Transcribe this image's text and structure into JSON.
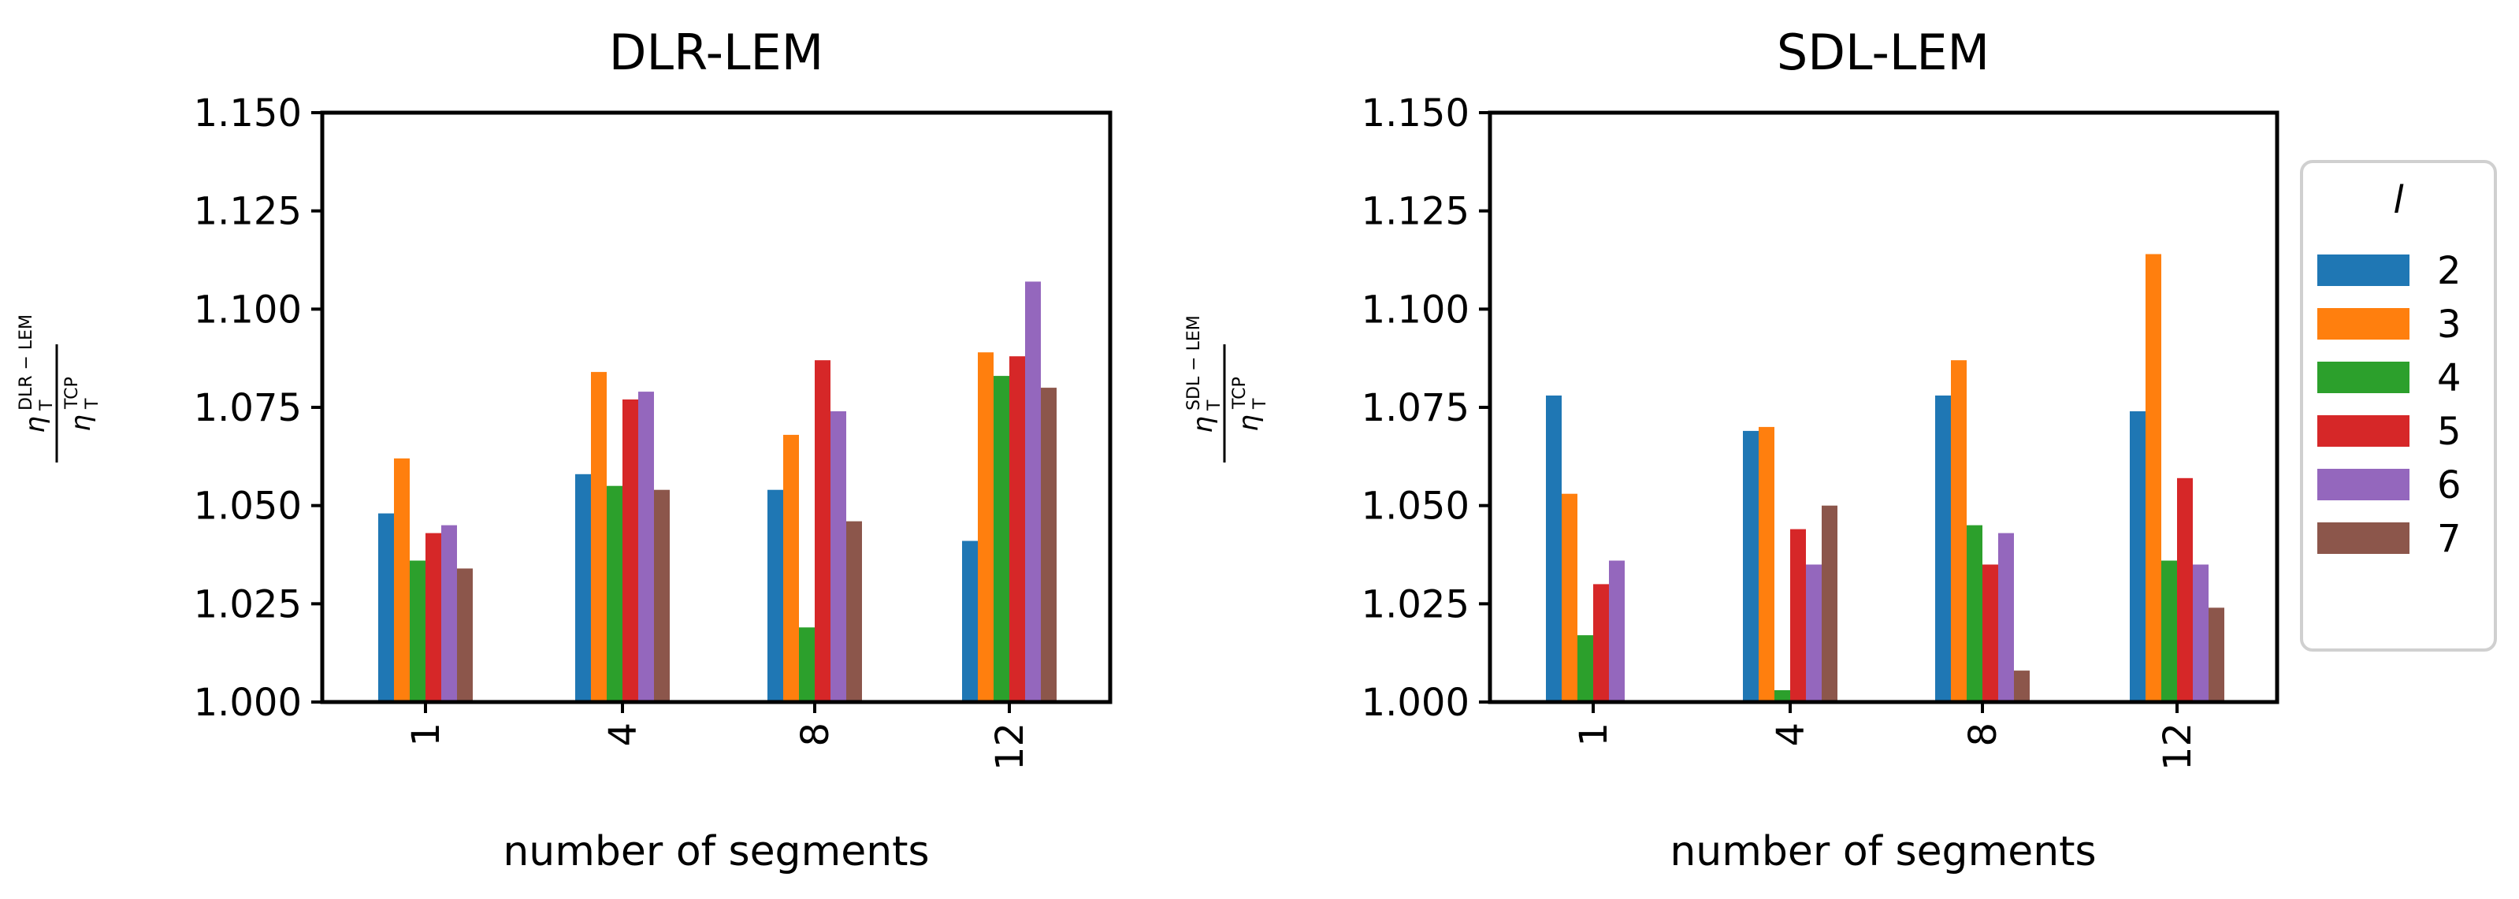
{
  "chart_data": [
    {
      "type": "bar",
      "title": "DLR-LEM",
      "xlabel": "number of segments",
      "ylabel": {
        "num_base": "η",
        "num_sub": "T",
        "num_sup": "DLR − LEM",
        "den_base": "η",
        "den_sub": "T",
        "den_sup": "TCP"
      },
      "ylim": [
        1.0,
        1.15
      ],
      "yticks": [
        "1.000",
        "1.025",
        "1.050",
        "1.075",
        "1.100",
        "1.125",
        "1.150"
      ],
      "categories": [
        "1",
        "4",
        "8",
        "12"
      ],
      "series": [
        {
          "name": "2",
          "values": [
            1.048,
            1.058,
            1.054,
            1.041
          ]
        },
        {
          "name": "3",
          "values": [
            1.062,
            1.084,
            1.068,
            1.089
          ]
        },
        {
          "name": "4",
          "values": [
            1.036,
            1.055,
            1.019,
            1.083
          ]
        },
        {
          "name": "5",
          "values": [
            1.043,
            1.077,
            1.087,
            1.088
          ]
        },
        {
          "name": "6",
          "values": [
            1.045,
            1.079,
            1.074,
            1.107
          ]
        },
        {
          "name": "7",
          "values": [
            1.034,
            1.054,
            1.046,
            1.08
          ]
        }
      ]
    },
    {
      "type": "bar",
      "title": "SDL-LEM",
      "xlabel": "number of segments",
      "ylabel": {
        "num_base": "η",
        "num_sub": "T",
        "num_sup": "SDL − LEM",
        "den_base": "η",
        "den_sub": "T",
        "den_sup": "TCP"
      },
      "ylim": [
        1.0,
        1.15
      ],
      "yticks": [
        "1.000",
        "1.025",
        "1.050",
        "1.075",
        "1.100",
        "1.125",
        "1.150"
      ],
      "categories": [
        "1",
        "4",
        "8",
        "12"
      ],
      "series": [
        {
          "name": "2",
          "values": [
            1.078,
            1.069,
            1.078,
            1.074
          ]
        },
        {
          "name": "3",
          "values": [
            1.053,
            1.07,
            1.087,
            1.114
          ]
        },
        {
          "name": "4",
          "values": [
            1.017,
            1.003,
            1.045,
            1.036
          ]
        },
        {
          "name": "5",
          "values": [
            1.03,
            1.044,
            1.035,
            1.057
          ]
        },
        {
          "name": "6",
          "values": [
            1.036,
            1.035,
            1.043,
            1.035
          ]
        },
        {
          "name": "7",
          "values": [
            1.0,
            1.05,
            1.008,
            1.024
          ]
        }
      ]
    }
  ],
  "legend": {
    "title": "l",
    "entries": [
      "2",
      "3",
      "4",
      "5",
      "6",
      "7"
    ]
  },
  "colors": [
    "#1f77b4",
    "#ff7f0e",
    "#2ca02c",
    "#d62728",
    "#9467bd",
    "#8c564b"
  ]
}
